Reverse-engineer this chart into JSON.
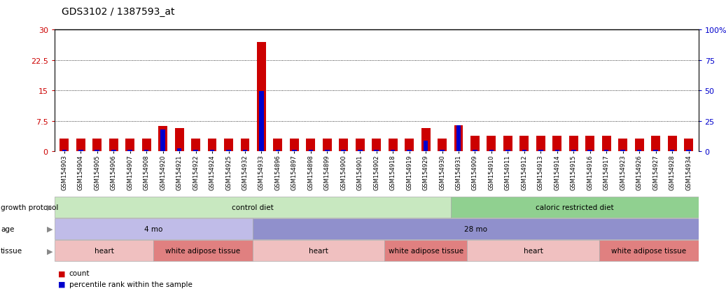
{
  "title": "GDS3102 / 1387593_at",
  "samples": [
    "GSM154903",
    "GSM154904",
    "GSM154905",
    "GSM154906",
    "GSM154907",
    "GSM154908",
    "GSM154920",
    "GSM154921",
    "GSM154922",
    "GSM154924",
    "GSM154925",
    "GSM154932",
    "GSM154933",
    "GSM154896",
    "GSM154897",
    "GSM154898",
    "GSM154899",
    "GSM154900",
    "GSM154901",
    "GSM154902",
    "GSM154918",
    "GSM154919",
    "GSM154929",
    "GSM154930",
    "GSM154931",
    "GSM154909",
    "GSM154910",
    "GSM154911",
    "GSM154912",
    "GSM154913",
    "GSM154914",
    "GSM154915",
    "GSM154916",
    "GSM154917",
    "GSM154923",
    "GSM154926",
    "GSM154927",
    "GSM154928",
    "GSM154934"
  ],
  "count_values": [
    3.2,
    3.2,
    3.2,
    3.2,
    3.2,
    3.2,
    6.2,
    5.8,
    3.2,
    3.2,
    3.2,
    3.2,
    27.0,
    3.2,
    3.2,
    3.2,
    3.2,
    3.2,
    3.2,
    3.2,
    3.2,
    3.2,
    5.8,
    3.2,
    6.5,
    3.8,
    3.8,
    3.8,
    3.8,
    3.8,
    3.8,
    3.8,
    3.8,
    3.8,
    3.2,
    3.2,
    3.8,
    3.8,
    3.2
  ],
  "percentile_values": [
    1.5,
    1.5,
    1.5,
    1.5,
    1.5,
    1.5,
    18.0,
    2.5,
    1.5,
    1.5,
    1.5,
    1.5,
    49.5,
    1.5,
    1.5,
    1.5,
    1.5,
    1.5,
    1.5,
    1.5,
    1.5,
    1.5,
    9.0,
    1.5,
    21.5,
    1.5,
    1.5,
    1.5,
    1.5,
    1.5,
    1.5,
    1.5,
    1.5,
    1.5,
    1.5,
    1.5,
    1.5,
    1.5,
    1.5
  ],
  "ylim_left": [
    0,
    30
  ],
  "ylim_right": [
    0,
    100
  ],
  "yticks_left": [
    0,
    7.5,
    15,
    22.5,
    30
  ],
  "yticks_right": [
    0,
    25,
    50,
    75,
    100
  ],
  "left_axis_color": "#cc0000",
  "right_axis_color": "#0000cc",
  "bar_color_red": "#cc0000",
  "bar_color_blue": "#0000cc",
  "bg_color": "#ffffff",
  "growth_protocol_groups": [
    {
      "label": "control diet",
      "start": 0,
      "end": 24,
      "color": "#c8e8c0"
    },
    {
      "label": "caloric restricted diet",
      "start": 24,
      "end": 39,
      "color": "#90d090"
    }
  ],
  "age_groups": [
    {
      "label": "4 mo",
      "start": 0,
      "end": 12,
      "color": "#c0bce8"
    },
    {
      "label": "28 mo",
      "start": 12,
      "end": 39,
      "color": "#9090cc"
    }
  ],
  "tissue_groups": [
    {
      "label": "heart",
      "start": 0,
      "end": 6,
      "color": "#f0c0c0"
    },
    {
      "label": "white adipose tissue",
      "start": 6,
      "end": 12,
      "color": "#e08080"
    },
    {
      "label": "heart",
      "start": 12,
      "end": 20,
      "color": "#f0c0c0"
    },
    {
      "label": "white adipose tissue",
      "start": 20,
      "end": 25,
      "color": "#e08080"
    },
    {
      "label": "heart",
      "start": 25,
      "end": 33,
      "color": "#f0c0c0"
    },
    {
      "label": "white adipose tissue",
      "start": 33,
      "end": 39,
      "color": "#e08080"
    }
  ],
  "row_labels": [
    "growth protocol",
    "age",
    "tissue"
  ],
  "legend_red": "count",
  "legend_blue": "percentile rank within the sample"
}
